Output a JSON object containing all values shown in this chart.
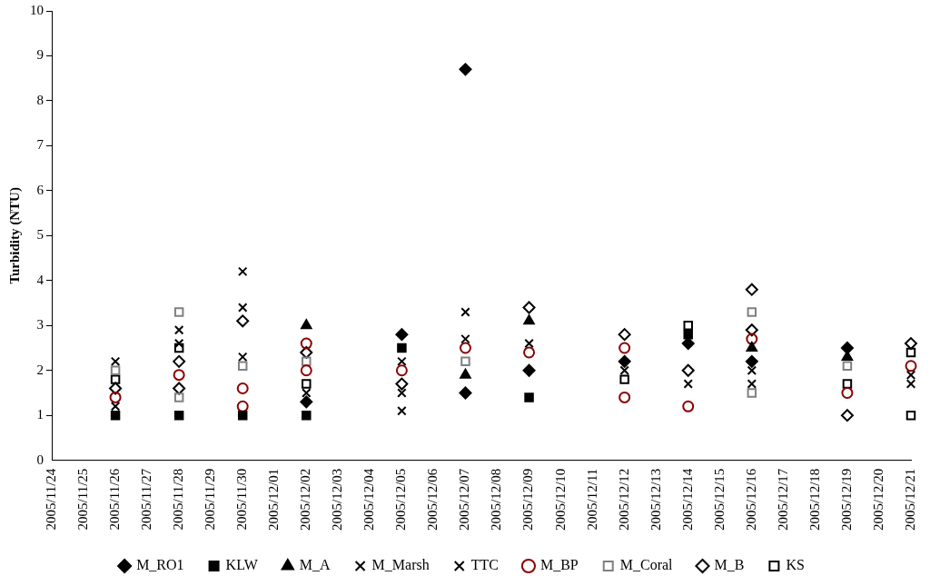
{
  "chart_data": {
    "type": "scatter",
    "ylabel": "Turbidity (NTU)",
    "xlim": [
      "2005-11-24",
      "2005-12-21"
    ],
    "xticks": [
      {
        "value": "2005-11-24",
        "label": "2005/11/24"
      },
      {
        "value": "2005-11-25",
        "label": "2005/11/25"
      },
      {
        "value": "2005-11-26",
        "label": "2005/11/26"
      },
      {
        "value": "2005-11-27",
        "label": "2005/11/27"
      },
      {
        "value": "2005-11-28",
        "label": "2005/11/28"
      },
      {
        "value": "2005-11-29",
        "label": "2005/11/29"
      },
      {
        "value": "2005-11-30",
        "label": "2005/11/30"
      },
      {
        "value": "2005-12-01",
        "label": "2005/12/01"
      },
      {
        "value": "2005-12-02",
        "label": "2005/12/02"
      },
      {
        "value": "2005-12-03",
        "label": "2005/12/03"
      },
      {
        "value": "2005-12-04",
        "label": "2005/12/04"
      },
      {
        "value": "2005-12-05",
        "label": "2005/12/05"
      },
      {
        "value": "2005-12-06",
        "label": "2005/12/06"
      },
      {
        "value": "2005-12-07",
        "label": "2005/12/07"
      },
      {
        "value": "2005-12-08",
        "label": "2005/12/08"
      },
      {
        "value": "2005-12-09",
        "label": "2005/12/09"
      },
      {
        "value": "2005-12-10",
        "label": "2005/12/10"
      },
      {
        "value": "2005-12-11",
        "label": "2005/12/11"
      },
      {
        "value": "2005-12-12",
        "label": "2005/12/12"
      },
      {
        "value": "2005-12-13",
        "label": "2005/12/13"
      },
      {
        "value": "2005-12-14",
        "label": "2005/12/14"
      },
      {
        "value": "2005-12-15",
        "label": "2005/12/15"
      },
      {
        "value": "2005-12-16",
        "label": "2005/12/16"
      },
      {
        "value": "2005-12-17",
        "label": "2005/12/17"
      },
      {
        "value": "2005-12-18",
        "label": "2005/12/18"
      },
      {
        "value": "2005-12-19",
        "label": "2005/12/19"
      },
      {
        "value": "2005-12-20",
        "label": "2005/12/20"
      },
      {
        "value": "2005-12-21",
        "label": "2005/12/21"
      }
    ],
    "ylim": [
      0,
      10
    ],
    "yticks": [
      0,
      1,
      2,
      3,
      4,
      5,
      6,
      7,
      8,
      9,
      10
    ],
    "grid": false,
    "legend": "bottom",
    "series": [
      {
        "name": "M_RO1",
        "color": "#000000",
        "marker": "diamond",
        "x": [
          "2005-12-02",
          "2005-12-05",
          "2005-12-07",
          "2005-12-07",
          "2005-12-09",
          "2005-12-12",
          "2005-12-14",
          "2005-12-16",
          "2005-12-19"
        ],
        "values": [
          1.3,
          2.8,
          8.7,
          1.5,
          2.0,
          2.2,
          2.6,
          2.2,
          2.5
        ]
      },
      {
        "name": "KLW",
        "color": "#000000",
        "marker": "square",
        "x": [
          "2005-11-26",
          "2005-11-28",
          "2005-11-30",
          "2005-12-02",
          "2005-12-05",
          "2005-12-09",
          "2005-12-14"
        ],
        "values": [
          1.0,
          1.0,
          1.0,
          1.0,
          2.5,
          1.4,
          2.8
        ]
      },
      {
        "name": "M_A",
        "color": "#000000",
        "marker": "triangle",
        "x": [
          "2005-12-02",
          "2005-12-07",
          "2005-12-09",
          "2005-12-16",
          "2005-12-19"
        ],
        "values": [
          3.0,
          1.9,
          3.1,
          2.5,
          2.3
        ]
      },
      {
        "name": "M_Marsh",
        "color": "#000000",
        "marker": "cross",
        "x": [
          "2005-11-26",
          "2005-11-28",
          "2005-11-30",
          "2005-12-05",
          "2005-12-05",
          "2005-12-07",
          "2005-12-09",
          "2005-12-14",
          "2005-12-16",
          "2005-12-21"
        ],
        "values": [
          1.2,
          2.6,
          2.3,
          1.1,
          2.2,
          3.3,
          2.6,
          1.7,
          1.7,
          1.7
        ]
      },
      {
        "name": "TTC",
        "color": "#000000",
        "marker": "cross",
        "x": [
          "2005-11-26",
          "2005-11-28",
          "2005-11-30",
          "2005-11-30",
          "2005-12-02",
          "2005-12-05",
          "2005-12-07",
          "2005-12-12",
          "2005-12-16",
          "2005-12-21"
        ],
        "values": [
          2.2,
          2.9,
          4.2,
          3.4,
          1.5,
          1.5,
          2.7,
          2.0,
          2.0,
          1.9
        ]
      },
      {
        "name": "M_BP",
        "color": "#8b0000",
        "marker": "circle",
        "x": [
          "2005-11-26",
          "2005-11-28",
          "2005-11-30",
          "2005-11-30",
          "2005-12-02",
          "2005-12-02",
          "2005-12-05",
          "2005-12-07",
          "2005-12-09",
          "2005-12-12",
          "2005-12-12",
          "2005-12-14",
          "2005-12-16",
          "2005-12-19",
          "2005-12-21"
        ],
        "values": [
          1.4,
          1.9,
          1.6,
          1.2,
          2.6,
          2.0,
          2.0,
          2.5,
          2.4,
          2.5,
          1.4,
          1.2,
          2.7,
          1.5,
          2.1
        ]
      },
      {
        "name": "M_Coral",
        "color": "#808080",
        "marker": "square",
        "x": [
          "2005-11-26",
          "2005-11-28",
          "2005-11-28",
          "2005-11-30",
          "2005-12-02",
          "2005-12-07",
          "2005-12-16",
          "2005-12-16",
          "2005-12-19"
        ],
        "values": [
          2.0,
          3.3,
          1.4,
          2.1,
          2.2,
          2.2,
          3.3,
          1.5,
          2.1
        ]
      },
      {
        "name": "M_B",
        "color": "#000000",
        "marker": "diamond",
        "x": [
          "2005-11-26",
          "2005-11-28",
          "2005-11-28",
          "2005-11-30",
          "2005-12-02",
          "2005-12-05",
          "2005-12-09",
          "2005-12-12",
          "2005-12-14",
          "2005-12-16",
          "2005-12-16",
          "2005-12-19",
          "2005-12-21"
        ],
        "values": [
          1.6,
          2.2,
          1.6,
          3.1,
          2.4,
          1.7,
          3.4,
          2.8,
          2.0,
          3.8,
          2.9,
          1.0,
          2.6
        ]
      },
      {
        "name": "KS",
        "color": "#000000",
        "marker": "square",
        "x": [
          "2005-11-26",
          "2005-11-28",
          "2005-12-02",
          "2005-12-12",
          "2005-12-14",
          "2005-12-19",
          "2005-12-21",
          "2005-12-21"
        ],
        "values": [
          1.8,
          2.5,
          1.7,
          1.8,
          3.0,
          1.7,
          2.4,
          1.0
        ]
      }
    ]
  }
}
